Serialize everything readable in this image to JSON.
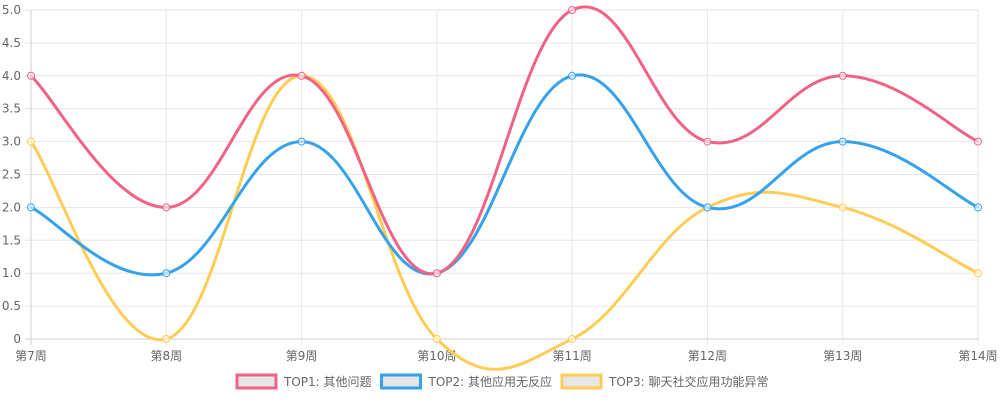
{
  "chart_data": {
    "type": "line",
    "categories": [
      "第7周",
      "第8周",
      "第9周",
      "第10周",
      "第11周",
      "第12周",
      "第13周",
      "第14周"
    ],
    "ylim": [
      0,
      5
    ],
    "yticks": [
      "0",
      "0.5",
      "1.0",
      "1.5",
      "2.0",
      "2.5",
      "3.0",
      "3.5",
      "4.0",
      "4.5",
      "5.0"
    ],
    "grid": true,
    "legend_position": "bottom",
    "series": [
      {
        "name": "TOP1: 其他问题",
        "color": "#f06385",
        "values": [
          4,
          2,
          4,
          1,
          5,
          3,
          4,
          3
        ]
      },
      {
        "name": "TOP2: 其他应用无反应",
        "color": "#36a2eb",
        "values": [
          2,
          1,
          3,
          1,
          4,
          2,
          3,
          2
        ]
      },
      {
        "name": "TOP3: 聊天社交应用功能异常",
        "color": "#ffcd56",
        "values": [
          3,
          0,
          4,
          0,
          0,
          2,
          2,
          1
        ]
      }
    ]
  }
}
